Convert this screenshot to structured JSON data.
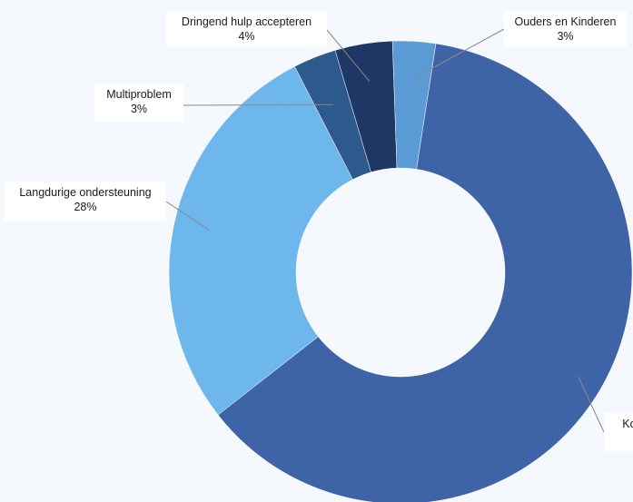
{
  "chart_data": {
    "type": "pie",
    "donut": true,
    "slices": [
      {
        "label": "Ouders en Kinderen",
        "percent_text": "3%",
        "value": 3,
        "color": "#5b9bd5"
      },
      {
        "label": "Kor",
        "percent_text": "",
        "value": 62,
        "color": "#3e63a6"
      },
      {
        "label": "Langdurige ondersteuning",
        "percent_text": "28%",
        "value": 28,
        "color": "#6db7ed"
      },
      {
        "label": "Multiproblem",
        "percent_text": "3%",
        "value": 3,
        "color": "#2d5a8c"
      },
      {
        "label": "Dringend hulp accepteren",
        "percent_text": "4%",
        "value": 4,
        "color": "#1f3764"
      }
    ],
    "legend": "none",
    "labels": "callout"
  }
}
